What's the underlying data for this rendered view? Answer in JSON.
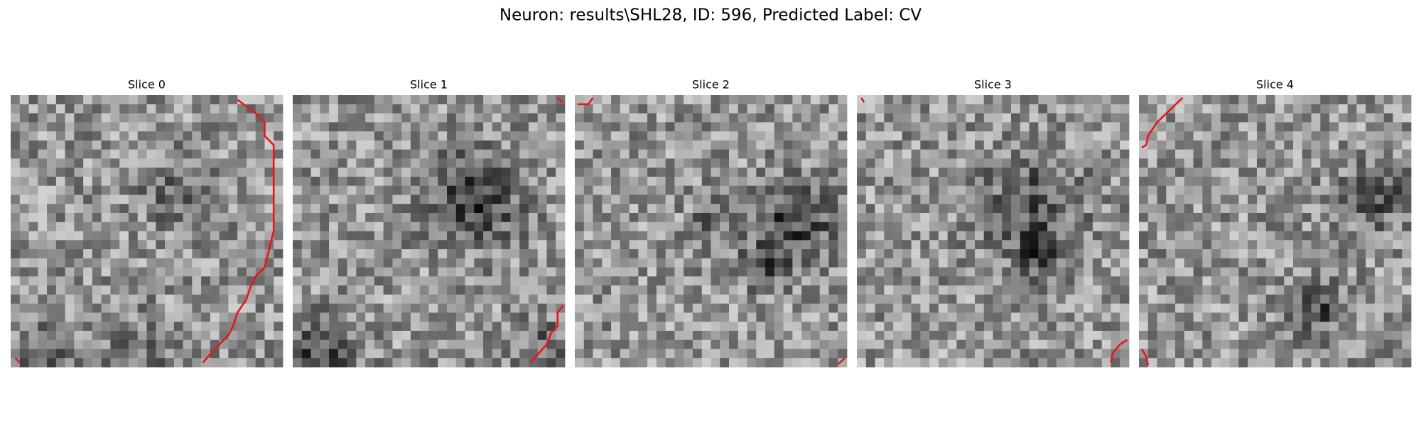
{
  "title": "Neuron: results\\SHL28, ID: 596, Predicted Label: CV",
  "panels": [
    {
      "title": "Slice 0"
    },
    {
      "title": "Slice 1"
    },
    {
      "title": "Slice 2"
    },
    {
      "title": "Slice 3"
    },
    {
      "title": "Slice 4"
    }
  ]
}
